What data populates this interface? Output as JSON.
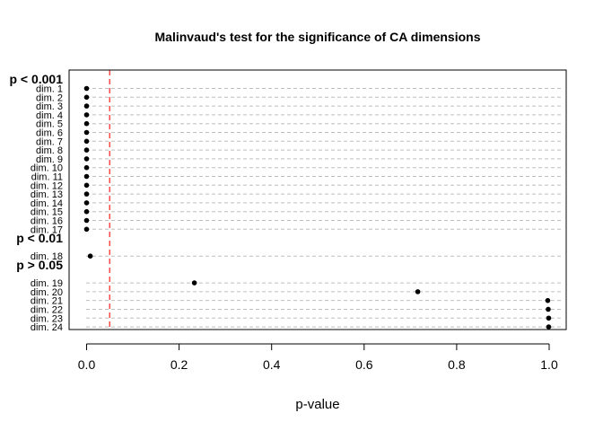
{
  "chart_data": {
    "type": "scatter",
    "title": "Malinvaud's test for the significance of CA dimensions",
    "xlabel": "p-value",
    "ylabel": "",
    "xlim": [
      0,
      1
    ],
    "x_ticks": [
      "0.0",
      "0.2",
      "0.4",
      "0.6",
      "0.8",
      "1.0"
    ],
    "x_tick_values": [
      0,
      0.2,
      0.4,
      0.6,
      0.8,
      1.0
    ],
    "threshold": 0.05,
    "threshold_color": "#ff4d4d",
    "grid": true,
    "groups": [
      {
        "label": "p < 0.001",
        "points": [
          {
            "label": "dim. 1",
            "value": 0.0
          },
          {
            "label": "dim. 2",
            "value": 0.0
          },
          {
            "label": "dim. 3",
            "value": 0.0
          },
          {
            "label": "dim. 4",
            "value": 0.0
          },
          {
            "label": "dim. 5",
            "value": 0.0
          },
          {
            "label": "dim. 6",
            "value": 0.0
          },
          {
            "label": "dim. 7",
            "value": 0.0
          },
          {
            "label": "dim. 8",
            "value": 0.0
          },
          {
            "label": "dim. 9",
            "value": 0.0
          },
          {
            "label": "dim. 10",
            "value": 0.0
          },
          {
            "label": "dim. 11",
            "value": 0.0
          },
          {
            "label": "dim. 12",
            "value": 0.0
          },
          {
            "label": "dim. 13",
            "value": 0.0
          },
          {
            "label": "dim. 14",
            "value": 0.0
          },
          {
            "label": "dim. 15",
            "value": 0.0
          },
          {
            "label": "dim. 16",
            "value": 0.0
          },
          {
            "label": "dim. 17",
            "value": 0.0
          }
        ]
      },
      {
        "label": "p < 0.01",
        "points": [
          {
            "label": "dim. 18",
            "value": 0.008
          }
        ]
      },
      {
        "label": "p > 0.05",
        "points": [
          {
            "label": "dim. 19",
            "value": 0.233
          },
          {
            "label": "dim. 20",
            "value": 0.716
          },
          {
            "label": "dim. 21",
            "value": 0.997
          },
          {
            "label": "dim. 22",
            "value": 0.998
          },
          {
            "label": "dim. 23",
            "value": 0.999
          },
          {
            "label": "dim. 24",
            "value": 0.999
          }
        ]
      }
    ]
  }
}
